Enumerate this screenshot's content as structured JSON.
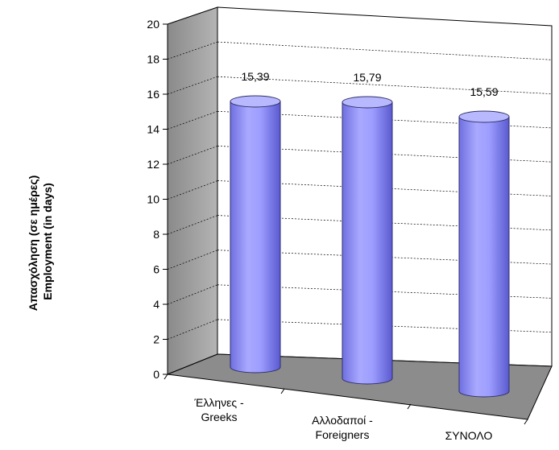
{
  "chart_data": {
    "type": "bar",
    "style": "3d-cylinder",
    "categories": [
      [
        "Έλληνες -",
        "Greeks"
      ],
      [
        "Αλλοδαποί -",
        "Foreigners"
      ],
      [
        "ΣΥΝΟΛΟ"
      ]
    ],
    "values": [
      15.39,
      15.79,
      15.59
    ],
    "data_labels": [
      "15,39",
      "15,79",
      "15,59"
    ],
    "ylabel_lines": [
      "Απασχόληση (σε ημέρες)",
      "Employment (in days)"
    ],
    "ylim": [
      0,
      20
    ],
    "yticks": [
      0,
      2,
      4,
      6,
      8,
      10,
      12,
      14,
      16,
      18,
      20
    ],
    "grid": true,
    "legend": "none",
    "colors": {
      "bar_body": "#9999ff",
      "bar_top": "#b8b8ff",
      "bar_edge": "#30306a",
      "wall": "#ffffff",
      "side_wall": "#a6a6a6",
      "floor": "#8c8c8c",
      "gridline": "#000000"
    }
  }
}
